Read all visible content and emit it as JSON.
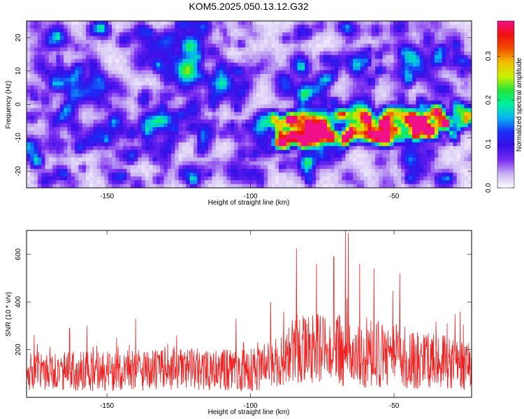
{
  "title": "KOM5.2025.050.13.12.G32",
  "colors": {
    "snr_line": "#ee2222",
    "heatmap_background": "#ffffff",
    "colormap": [
      "#ffffff",
      "#c9b2f2",
      "#7a2cf0",
      "#3a10e8",
      "#1a2cf5",
      "#0ab0f5",
      "#00f0a0",
      "#22e53a",
      "#c8f000",
      "#f0c000",
      "#f05000",
      "#f01010",
      "#f0108a"
    ]
  },
  "chart_data": [
    {
      "type": "heatmap",
      "xlabel": "Height of straight line (km)",
      "ylabel": "Frequency (Hz)",
      "xlim": [
        -178,
        -23
      ],
      "ylim": [
        -25,
        25
      ],
      "x_ticks": [
        "-150",
        "-100",
        "-50"
      ],
      "y_ticks": [
        "-20",
        "-10",
        "0",
        "10",
        "20"
      ],
      "colorbar": {
        "label": "Normalized spectral amplitude",
        "range": [
          0,
          0.38
        ],
        "ticks": [
          "0.0",
          "0.1",
          "0.2",
          "0.3"
        ]
      },
      "signal_band": {
        "x_range": [
          -92,
          -23
        ],
        "frequency_center": -5,
        "frequency_width": 9,
        "peak": {
          "x": -32,
          "y": -6,
          "value": 0.37
        }
      },
      "grid": false
    },
    {
      "type": "line",
      "xlabel": "Height of straight line (km)",
      "ylabel": "SNR (10 * v/v)",
      "xlim": [
        -178,
        -23
      ],
      "ylim": [
        0,
        700
      ],
      "x_ticks": [
        "-150",
        "-100",
        "-50"
      ],
      "y_ticks": [
        "200",
        "400",
        "600"
      ],
      "series": [
        {
          "envelope": [
            {
              "x": -178,
              "mean": 110,
              "spread": 80
            },
            {
              "x": -150,
              "mean": 110,
              "spread": 85
            },
            {
              "x": -125,
              "mean": 115,
              "spread": 90
            },
            {
              "x": -100,
              "mean": 115,
              "spread": 90
            },
            {
              "x": -90,
              "mean": 150,
              "spread": 110
            },
            {
              "x": -85,
              "mean": 200,
              "spread": 140
            },
            {
              "x": -75,
              "mean": 200,
              "spread": 150
            },
            {
              "x": -65,
              "mean": 190,
              "spread": 150
            },
            {
              "x": -50,
              "mean": 175,
              "spread": 135
            },
            {
              "x": -35,
              "mean": 150,
              "spread": 120
            },
            {
              "x": -23,
              "mean": 130,
              "spread": 100
            }
          ],
          "peaks": [
            {
              "x": -84,
              "y": 625
            },
            {
              "x": -77,
              "y": 560
            },
            {
              "x": -71,
              "y": 590
            },
            {
              "x": -67,
              "y": 700
            },
            {
              "x": -66,
              "y": 690
            },
            {
              "x": -62,
              "y": 560
            },
            {
              "x": -57,
              "y": 540
            },
            {
              "x": -48,
              "y": 520
            },
            {
              "x": -93,
              "y": 400
            },
            {
              "x": -140,
              "y": 330
            },
            {
              "x": -157,
              "y": 300
            },
            {
              "x": -163,
              "y": 290
            },
            {
              "x": -105,
              "y": 330
            },
            {
              "x": -27,
              "y": 360
            }
          ]
        }
      ],
      "grid": false
    }
  ]
}
